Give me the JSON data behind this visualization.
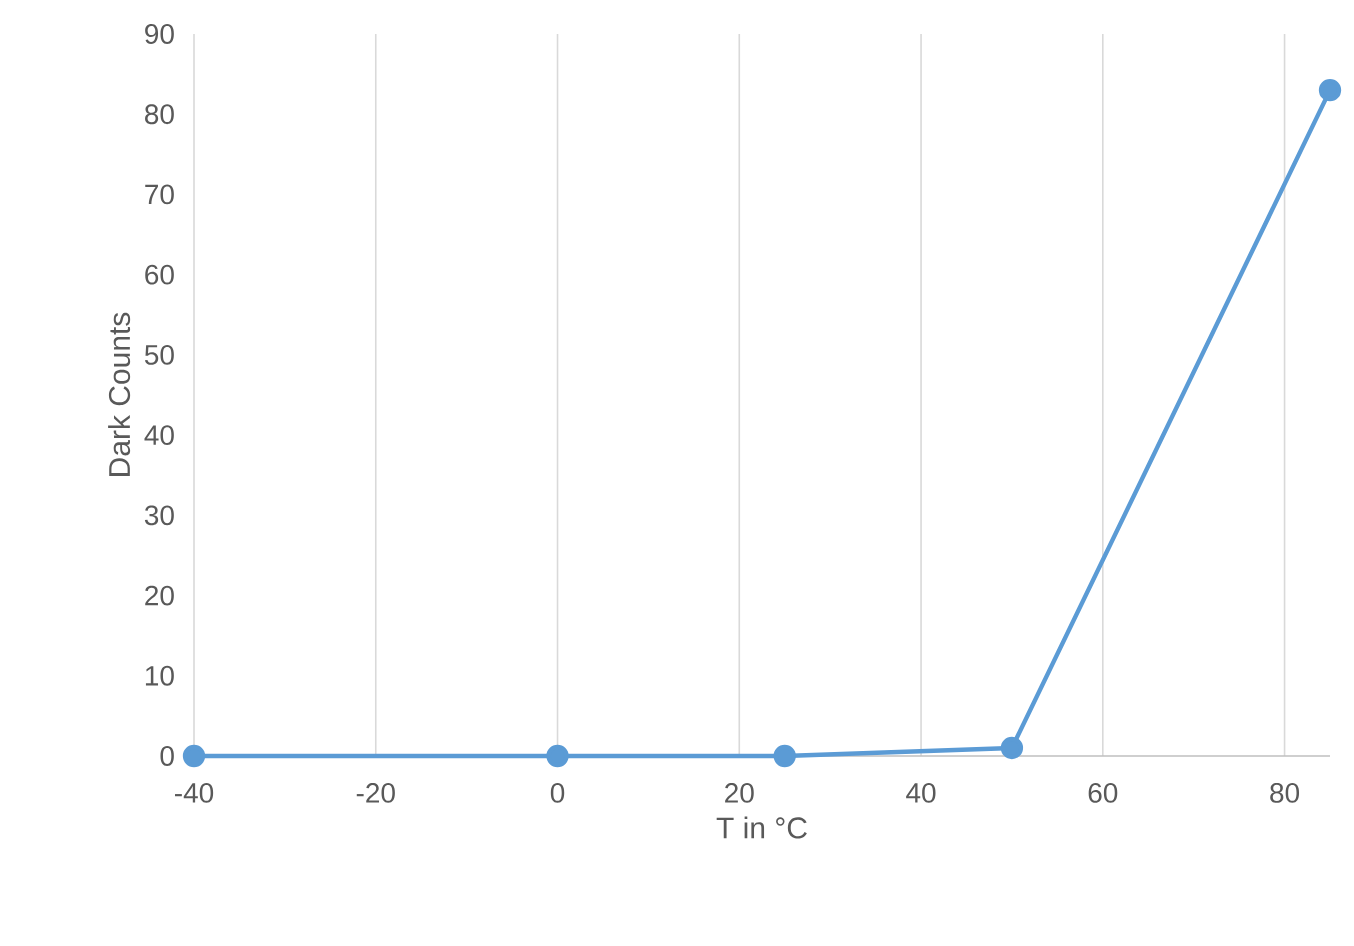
{
  "chart_data": {
    "type": "line",
    "xlabel": "T in °C",
    "ylabel": "Dark Counts",
    "xlim": [
      -40,
      85
    ],
    "ylim": [
      0,
      90
    ],
    "xticks": [
      -40,
      -20,
      0,
      20,
      40,
      60,
      80
    ],
    "yticks": [
      0,
      10,
      20,
      30,
      40,
      50,
      60,
      70,
      80,
      90
    ],
    "grid": "x",
    "marker": "circle",
    "line_style": "solid",
    "series": [
      {
        "color": "#5b9bd5",
        "x": [
          -40,
          0,
          25,
          50,
          85
        ],
        "values": [
          0,
          0,
          0,
          1,
          83
        ]
      }
    ]
  }
}
